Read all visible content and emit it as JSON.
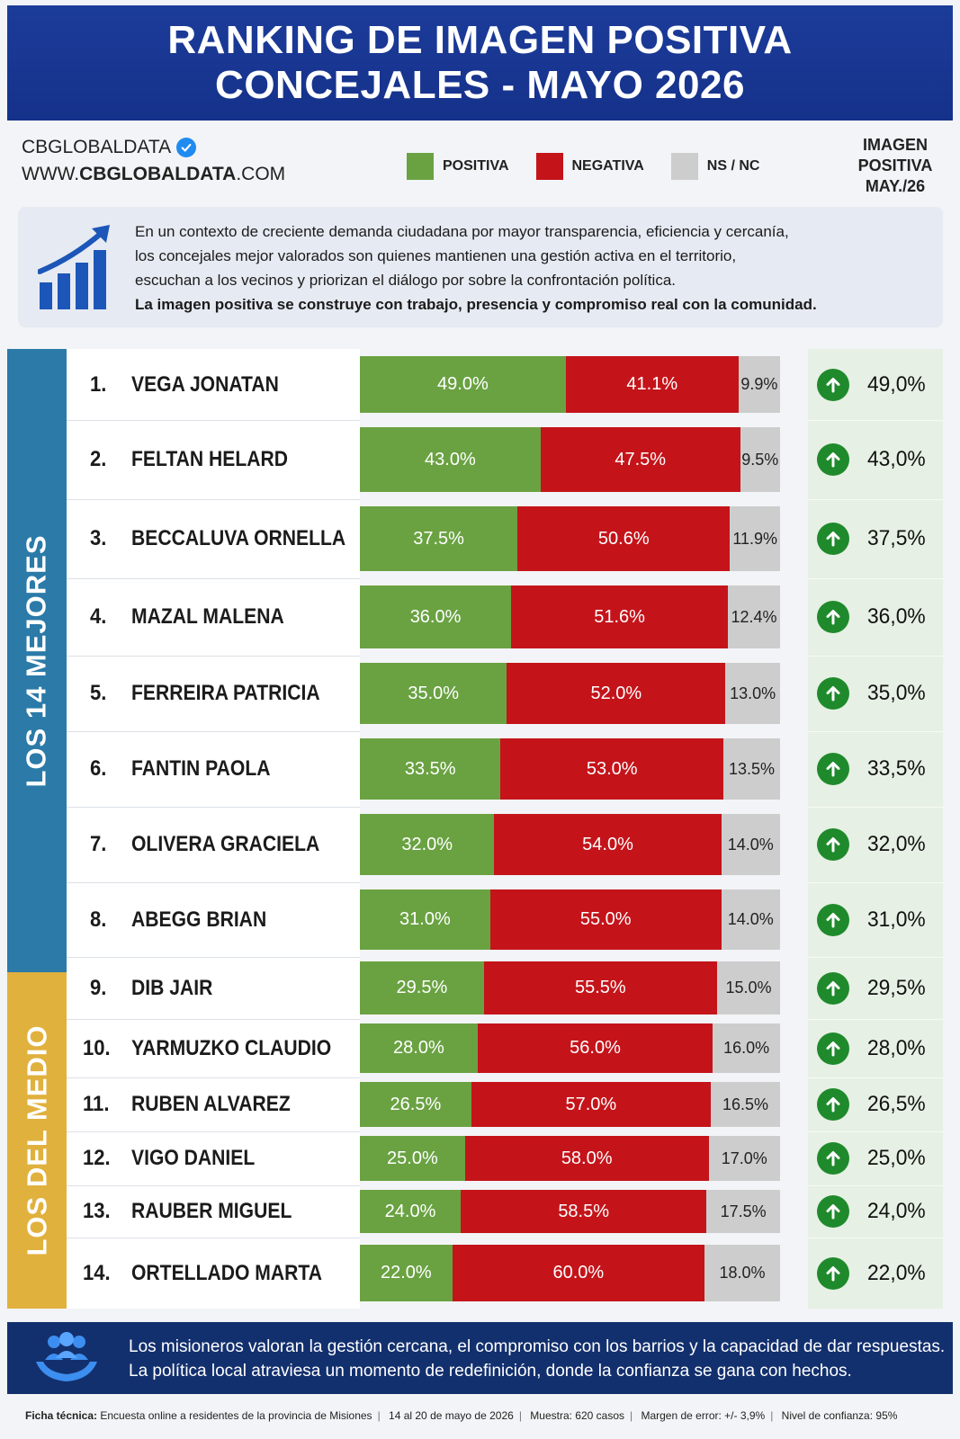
{
  "title": {
    "line1": "RANKING DE IMAGEN POSITIVA",
    "line2": "CONCEJALES - MAYO 2026"
  },
  "brand": {
    "name": "CBGLOBALDATA",
    "site_prefix": "WWW.",
    "site_bold": "CBGLOBALDATA",
    "site_suffix": ".COM"
  },
  "legend": {
    "positive": "POSITIVA",
    "negative": "NEGATIVA",
    "nsnc": "NS / NC"
  },
  "image_header": {
    "line1": "IMAGEN",
    "line2": "POSITIVA",
    "line3": "MAY./26"
  },
  "context": {
    "line1": "En un contexto de creciente demanda ciudadana por mayor transparencia, eficiencia y cercanía,",
    "line2": "los concejales mejor valorados son quienes mantienen una gestión activa en el territorio,",
    "line3": "escuchan a los vecinos y priorizan el diálogo por sobre la confrontación política.",
    "line4": "La imagen positiva se construye con trabajo, presencia y compromiso real con la comunidad."
  },
  "groups": {
    "top": "LOS 14 MEJORES",
    "mid": "LOS DEL MEDIO"
  },
  "colors": {
    "positive": "#6aa242",
    "negative": "#c4141a",
    "nsnc": "#cdcdcd",
    "header": "#1c3c9a",
    "band_top": "#2b7aa8",
    "band_mid": "#e0b13d",
    "up_arrow": "#1f8a2c"
  },
  "chart_data": {
    "type": "bar",
    "stacked": true,
    "orientation": "horizontal",
    "series": [
      {
        "name": "POSITIVA",
        "values": [
          49.0,
          43.0,
          37.5,
          36.0,
          35.0,
          33.5,
          32.0,
          31.0,
          29.5,
          28.0,
          26.5,
          25.0,
          24.0,
          22.0
        ]
      },
      {
        "name": "NEGATIVA",
        "values": [
          41.1,
          47.5,
          50.6,
          51.6,
          52.0,
          53.0,
          54.0,
          55.0,
          55.5,
          56.0,
          57.0,
          58.0,
          58.5,
          60.0
        ]
      },
      {
        "name": "NS / NC",
        "values": [
          9.9,
          9.5,
          11.9,
          12.4,
          13.0,
          13.5,
          14.0,
          14.0,
          15.0,
          16.0,
          16.5,
          17.0,
          17.5,
          18.0
        ]
      }
    ],
    "rows": [
      {
        "rank": "1.",
        "name": "VEGA JONATAN",
        "pos": "49.0%",
        "neg": "41.1%",
        "ns": "9.9%",
        "img": "49,0%"
      },
      {
        "rank": "2.",
        "name": "FELTAN HELARD",
        "pos": "43.0%",
        "neg": "47.5%",
        "ns": "9.5%",
        "img": "43,0%"
      },
      {
        "rank": "3.",
        "name": "BECCALUVA ORNELLA",
        "pos": "37.5%",
        "neg": "50.6%",
        "ns": "11.9%",
        "img": "37,5%"
      },
      {
        "rank": "4.",
        "name": "MAZAL MALENA",
        "pos": "36.0%",
        "neg": "51.6%",
        "ns": "12.4%",
        "img": "36,0%"
      },
      {
        "rank": "5.",
        "name": "FERREIRA PATRICIA",
        "pos": "35.0%",
        "neg": "52.0%",
        "ns": "13.0%",
        "img": "35,0%"
      },
      {
        "rank": "6.",
        "name": "FANTIN PAOLA",
        "pos": "33.5%",
        "neg": "53.0%",
        "ns": "13.5%",
        "img": "33,5%"
      },
      {
        "rank": "7.",
        "name": "OLIVERA GRACIELA",
        "pos": "32.0%",
        "neg": "54.0%",
        "ns": "14.0%",
        "img": "32,0%"
      },
      {
        "rank": "8.",
        "name": "ABEGG BRIAN",
        "pos": "31.0%",
        "neg": "55.0%",
        "ns": "14.0%",
        "img": "31,0%"
      },
      {
        "rank": "9.",
        "name": "DIB JAIR",
        "pos": "29.5%",
        "neg": "55.5%",
        "ns": "15.0%",
        "img": "29,5%"
      },
      {
        "rank": "10.",
        "name": "YARMUZKO CLAUDIO",
        "pos": "28.0%",
        "neg": "56.0%",
        "ns": "16.0%",
        "img": "28,0%"
      },
      {
        "rank": "11.",
        "name": "RUBEN ALVAREZ",
        "pos": "26.5%",
        "neg": "57.0%",
        "ns": "16.5%",
        "img": "26,5%"
      },
      {
        "rank": "12.",
        "name": "VIGO DANIEL",
        "pos": "25.0%",
        "neg": "58.0%",
        "ns": "17.0%",
        "img": "25,0%"
      },
      {
        "rank": "13.",
        "name": "RAUBER MIGUEL",
        "pos": "24.0%",
        "neg": "58.5%",
        "ns": "17.5%",
        "img": "24,0%"
      },
      {
        "rank": "14.",
        "name": "ORTELLADO MARTA",
        "pos": "22.0%",
        "neg": "60.0%",
        "ns": "18.0%",
        "img": "22,0%"
      }
    ]
  },
  "footer": {
    "line1_a": "Los misioneros valoran ",
    "line1_b": "la gestión cercana, el compromiso con los barrios y la capacidad de dar respuestas.",
    "line2": "La política local atraviesa un momento de redefinición, donde la confianza se gana con hechos."
  },
  "ficha": {
    "label": "Ficha técnica:",
    "p1": "Encuesta online a residentes de la provincia de Misiones",
    "p2": "14 al 20 de mayo de 2026",
    "p3": "Muestra: 620 casos",
    "p4": "Margen de error: +/- 3,9%",
    "p5": "Nivel de confianza: 95%"
  }
}
